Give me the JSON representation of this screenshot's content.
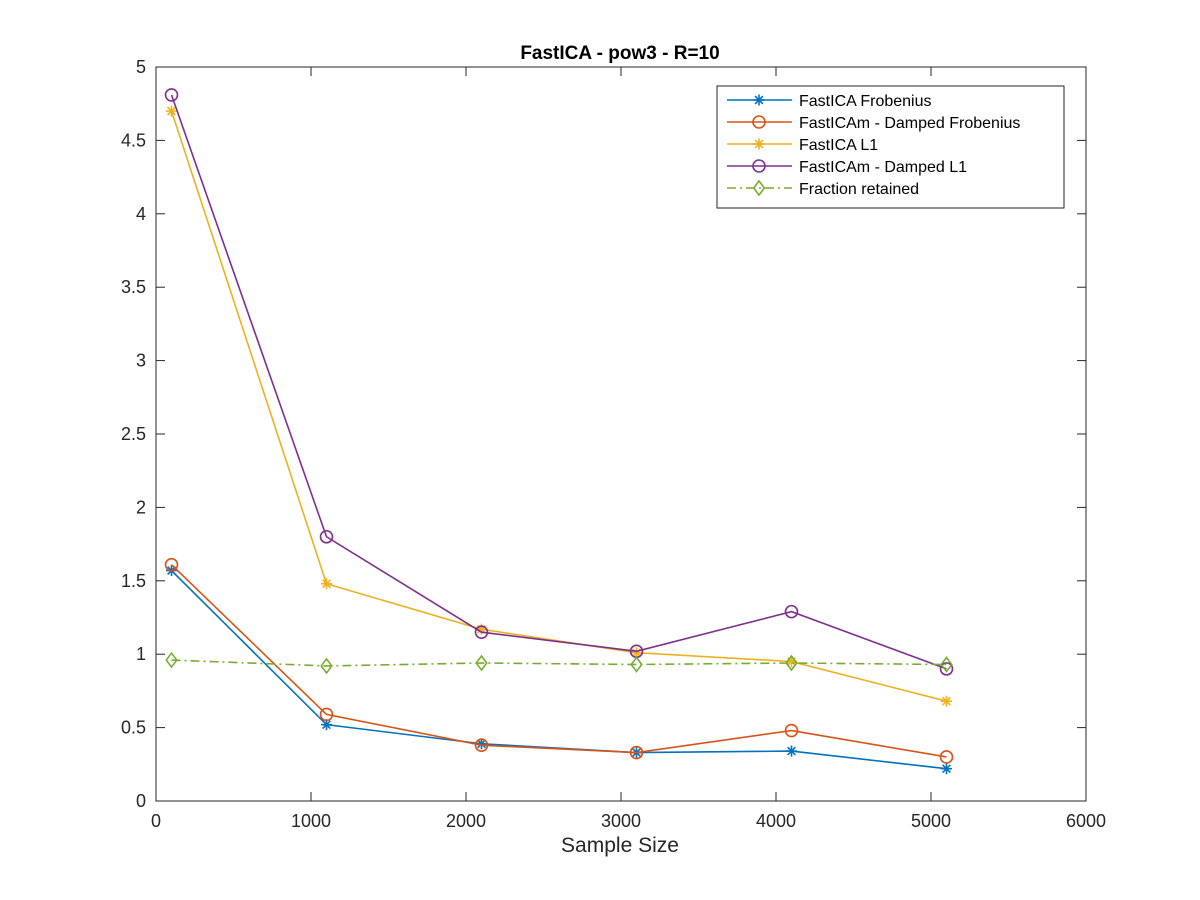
{
  "chart_data": {
    "type": "line",
    "title": "FastICA - pow3 - R=10",
    "xlabel": "Sample Size",
    "ylabel": "",
    "xlim": [
      0,
      6000
    ],
    "ylim": [
      0,
      5
    ],
    "xticks": [
      0,
      1000,
      2000,
      3000,
      4000,
      5000,
      6000
    ],
    "yticks": [
      0,
      0.5,
      1,
      1.5,
      2,
      2.5,
      3,
      3.5,
      4,
      4.5,
      5
    ],
    "xtick_labels": [
      "0",
      "1000",
      "2000",
      "3000",
      "4000",
      "5000",
      "6000"
    ],
    "ytick_labels": [
      "0",
      "0.5",
      "1",
      "1.5",
      "2",
      "2.5",
      "3",
      "3.5",
      "4",
      "4.5",
      "5"
    ],
    "grid": false,
    "legend_position": "top-right",
    "x": [
      100,
      1100,
      2100,
      3100,
      4100,
      5100
    ],
    "series": [
      {
        "name": "FastICA Frobenius",
        "color": "#0072BD",
        "marker": "asterisk",
        "linestyle": "solid",
        "values": [
          1.57,
          0.52,
          0.39,
          0.33,
          0.34,
          0.22
        ]
      },
      {
        "name": "FastICAm - Damped Frobenius",
        "color": "#D95319",
        "marker": "circle",
        "linestyle": "solid",
        "values": [
          1.61,
          0.59,
          0.38,
          0.33,
          0.48,
          0.3
        ]
      },
      {
        "name": "FastICA L1",
        "color": "#EDB120",
        "marker": "asterisk",
        "linestyle": "solid",
        "values": [
          4.7,
          1.48,
          1.17,
          1.01,
          0.95,
          0.68
        ]
      },
      {
        "name": "FastICAm - Damped L1",
        "color": "#7E2F8E",
        "marker": "circle",
        "linestyle": "solid",
        "values": [
          4.81,
          1.8,
          1.15,
          1.02,
          1.29,
          0.9
        ]
      },
      {
        "name": "Fraction retained",
        "color": "#77AC30",
        "marker": "diamond",
        "linestyle": "dashdot",
        "values": [
          0.96,
          0.92,
          0.94,
          0.93,
          0.94,
          0.93
        ]
      }
    ]
  }
}
